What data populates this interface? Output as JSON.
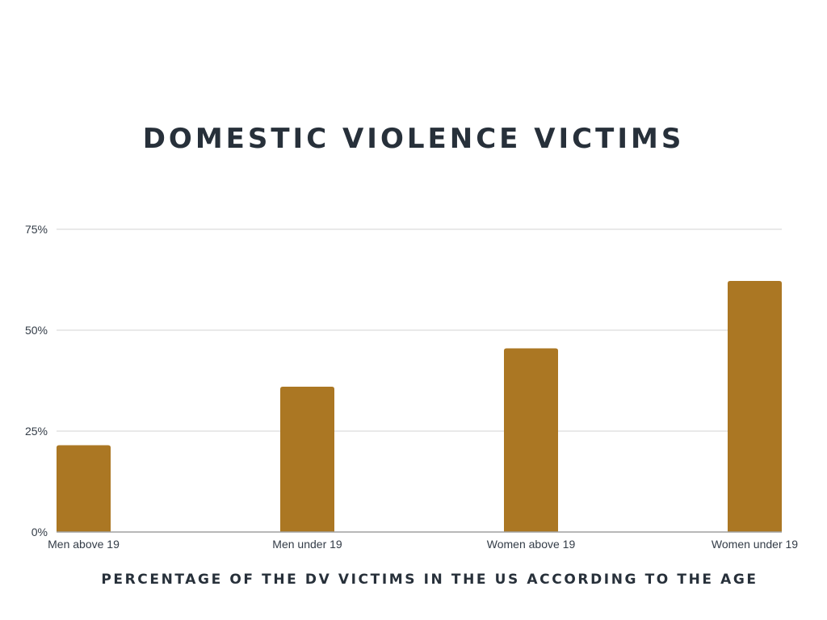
{
  "chart_data": {
    "type": "bar",
    "title": "DOMESTIC VIOLENCE VICTIMS",
    "xlabel": "PERCENTAGE OF THE DV VICTIMS IN THE US ACCORDING TO THE AGE",
    "ylabel": "",
    "categories": [
      "Men above 19",
      "Men under 19",
      "Women above 19",
      "Women under 19"
    ],
    "values": [
      21.5,
      36,
      45.5,
      62.2
    ],
    "ylim": [
      0,
      75
    ],
    "yticks": [
      0,
      25,
      50,
      75
    ],
    "ytick_labels": [
      "0%",
      "25%",
      "50%",
      "75%"
    ],
    "grid": true,
    "bar_color": "#ab7723",
    "grid_color": "#dcdcdc",
    "axis_color": "#a0a0a0"
  }
}
